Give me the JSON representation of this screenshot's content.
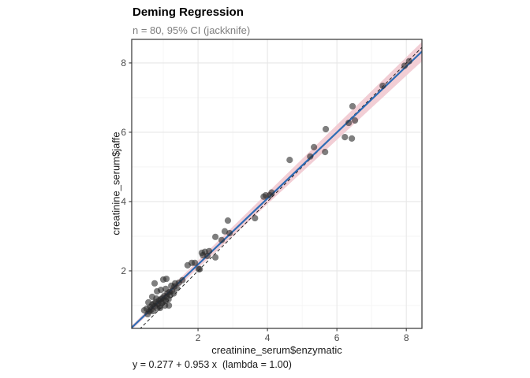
{
  "header": {
    "title": "Deming Regression",
    "subtitle": "n = 80, 95% CI (jackknife)"
  },
  "axes": {
    "x_label": "creatinine_serum$enzymatic",
    "y_label": "creatinine_serum$jaffe"
  },
  "footer": {
    "equation": "y = 0.277 + 0.953 x  (lambda = 1.00)"
  },
  "colors": {
    "fit_line": "#2e6cb5",
    "ribbon": "#f2ced5",
    "identity_line": "#000000",
    "point": "#2a2a2a",
    "grid_major": "#e7e7e7",
    "grid_minor": "#f3f3f3",
    "panel_border": "#333333",
    "panel_background": "#ffffff",
    "tick_label": "#4d4d4d",
    "subtitle_text": "#7f7f7f"
  },
  "chart_data": {
    "type": "scatter",
    "title": "Deming Regression",
    "subtitle": "n = 80, 95% CI (jackknife)",
    "xlabel": "creatinine_serum$enzymatic",
    "ylabel": "creatinine_serum$jaffe",
    "annotation": "y = 0.277 + 0.953 x  (lambda = 1.00)",
    "n": 80,
    "xlim": [
      0.09,
      8.45
    ],
    "ylim": [
      0.34,
      8.68
    ],
    "x_ticks": [
      2,
      4,
      6,
      8
    ],
    "y_ticks": [
      2,
      4,
      6,
      8
    ],
    "x_minor_ticks": [
      1,
      3,
      5,
      7
    ],
    "y_minor_ticks": [
      1,
      3,
      5,
      7
    ],
    "grid": true,
    "legend": "none",
    "fit": {
      "intercept": 0.277,
      "slope": 0.953,
      "lambda": 1.0
    },
    "identity_line": {
      "slope": 1,
      "intercept": 0,
      "style": "dashed"
    },
    "ci_ribbon": {
      "level": "95%",
      "method": "jackknife",
      "halfwidth_at_xmin": 0.06,
      "halfwidth_at_xmax": 0.28
    },
    "points": [
      [
        0.45,
        0.86
      ],
      [
        0.52,
        0.91
      ],
      [
        0.55,
        0.75
      ],
      [
        0.57,
        1.09
      ],
      [
        0.6,
        0.83
      ],
      [
        0.62,
        0.95
      ],
      [
        0.65,
        0.88
      ],
      [
        0.68,
        1.02
      ],
      [
        0.68,
        1.25
      ],
      [
        0.7,
        0.84
      ],
      [
        0.72,
        1.05
      ],
      [
        0.75,
        0.98
      ],
      [
        0.75,
        1.64
      ],
      [
        0.78,
        1.1
      ],
      [
        0.8,
        1.2
      ],
      [
        0.82,
        0.92
      ],
      [
        0.82,
        1.41
      ],
      [
        0.85,
        1.05
      ],
      [
        0.88,
        1.15
      ],
      [
        0.9,
        0.98
      ],
      [
        0.91,
        0.93
      ],
      [
        0.93,
        1.18
      ],
      [
        0.93,
        1.45
      ],
      [
        0.95,
        1.08
      ],
      [
        0.98,
        1.22
      ],
      [
        1.0,
        1.12
      ],
      [
        1.0,
        1.75
      ],
      [
        1.03,
        1.28
      ],
      [
        1.05,
        1.0
      ],
      [
        1.07,
        1.14
      ],
      [
        1.07,
        1.48
      ],
      [
        1.09,
        1.77
      ],
      [
        1.1,
        1.25
      ],
      [
        1.12,
        1.35
      ],
      [
        1.15,
        1.18
      ],
      [
        1.16,
        1.0
      ],
      [
        1.18,
        1.39
      ],
      [
        1.2,
        1.3
      ],
      [
        1.23,
        1.57
      ],
      [
        1.25,
        1.42
      ],
      [
        1.3,
        1.35
      ],
      [
        1.32,
        1.55
      ],
      [
        1.34,
        1.64
      ],
      [
        1.39,
        1.5
      ],
      [
        1.45,
        1.66
      ],
      [
        1.55,
        1.73
      ],
      [
        1.7,
        2.16
      ],
      [
        1.82,
        2.23
      ],
      [
        1.91,
        2.23
      ],
      [
        2.02,
        2.05
      ],
      [
        2.05,
        2.05
      ],
      [
        2.11,
        2.52
      ],
      [
        2.14,
        2.45
      ],
      [
        2.2,
        2.55
      ],
      [
        2.27,
        2.43
      ],
      [
        2.32,
        2.57
      ],
      [
        2.5,
        2.39
      ],
      [
        2.5,
        2.98
      ],
      [
        2.68,
        2.89
      ],
      [
        2.77,
        3.14
      ],
      [
        2.86,
        3.45
      ],
      [
        2.91,
        3.09
      ],
      [
        3.64,
        3.52
      ],
      [
        3.89,
        4.14
      ],
      [
        3.95,
        4.18
      ],
      [
        4.07,
        4.18
      ],
      [
        4.12,
        4.26
      ],
      [
        4.64,
        5.2
      ],
      [
        5.23,
        5.3
      ],
      [
        5.34,
        5.57
      ],
      [
        5.66,
        5.43
      ],
      [
        5.68,
        6.09
      ],
      [
        6.23,
        5.86
      ],
      [
        6.43,
        5.82
      ],
      [
        6.34,
        6.27
      ],
      [
        6.45,
        6.75
      ],
      [
        6.52,
        6.34
      ],
      [
        7.32,
        7.34
      ],
      [
        7.95,
        7.92
      ],
      [
        8.08,
        8.05
      ]
    ]
  }
}
